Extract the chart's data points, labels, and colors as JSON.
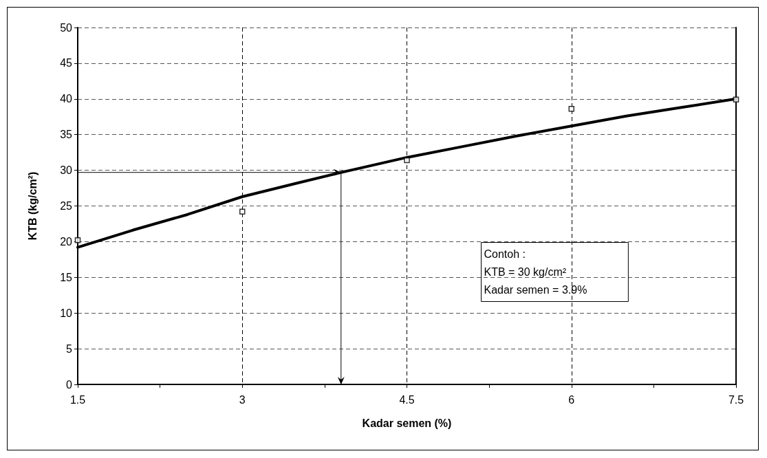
{
  "chart_data": {
    "type": "scatter",
    "xlabel": "Kadar semen (%)",
    "ylabel": "KTB (kg/cm²)",
    "xlim": [
      1.5,
      7.5
    ],
    "xticks": [
      1.5,
      {
        "value": 2.25,
        "label": null
      },
      3,
      {
        "value": 3.75,
        "label": null
      },
      4.5,
      {
        "value": 5.25,
        "label": null
      },
      6,
      {
        "value": 6.75,
        "label": null
      },
      7.5
    ],
    "ylim": [
      0,
      50
    ],
    "yticks": [
      0,
      5,
      10,
      15,
      20,
      25,
      30,
      35,
      40,
      45,
      50
    ],
    "grid": true,
    "marker": "square",
    "series": [
      {
        "color": "#000000",
        "x": [
          1.5,
          3,
          4.5,
          6,
          7.5
        ],
        "values": [
          20.2,
          24.2,
          31.4,
          38.6,
          39.9
        ]
      },
      {
        "type": "line",
        "color": "#000000",
        "marker": "none",
        "x": [
          1.5,
          2,
          2.5,
          3,
          3.5,
          3.9,
          4.5,
          5,
          5.5,
          6,
          6.5,
          7,
          7.5
        ],
        "values": [
          19.2,
          21.6,
          23.8,
          26.3,
          28.2,
          29.7,
          31.8,
          33.3,
          34.8,
          36.2,
          37.6,
          38.8,
          40.0
        ]
      }
    ],
    "ref_lines": [
      {
        "axis": "y",
        "value": 29.7
      },
      {
        "axis": "x",
        "value": 3.9
      }
    ],
    "annotations": [
      "Contoh :\nKTB = 30 kg/cm²\nKadar semen = 3.9%"
    ]
  }
}
